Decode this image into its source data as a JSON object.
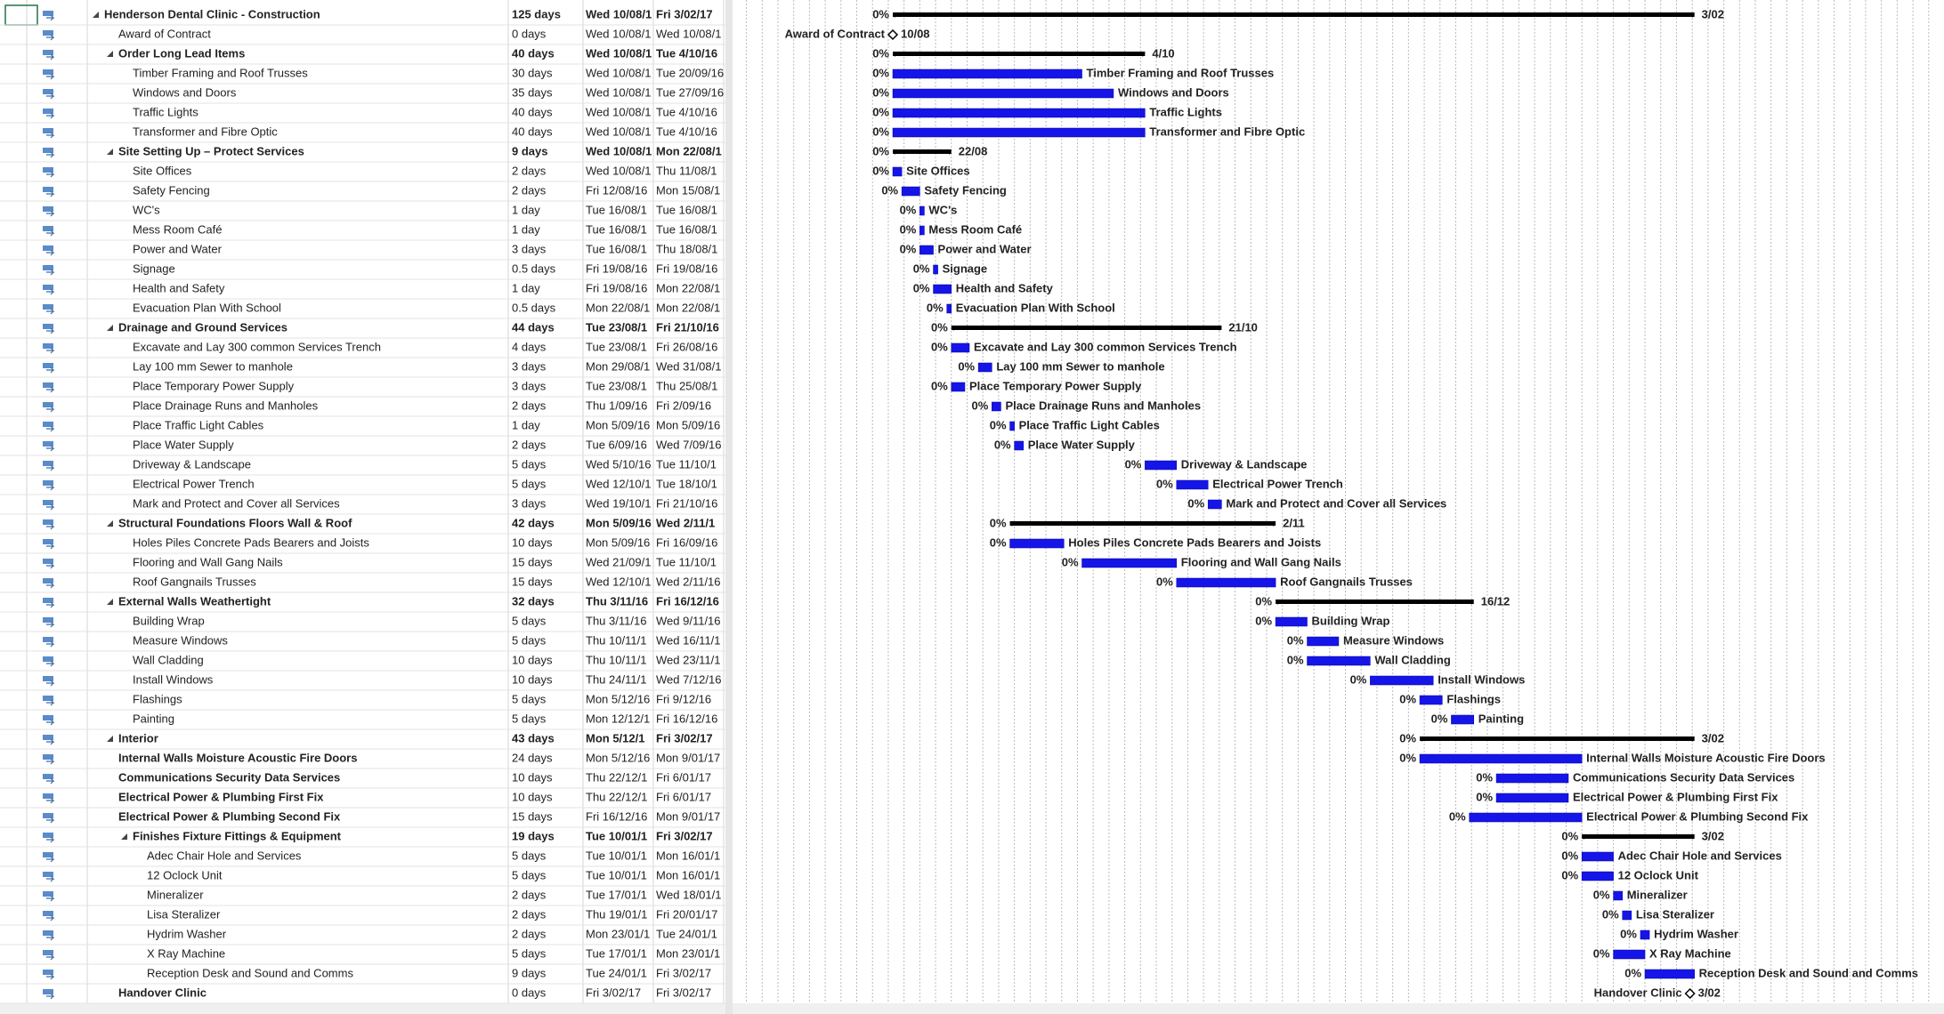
{
  "rows": [
    {
      "name": "Henderson Dental Clinic - Construction",
      "duration": "125 days",
      "start": "Wed 10/08/1",
      "finish": "Fri 3/02/17",
      "complete": "0%",
      "level": 0,
      "summary": true,
      "bold": true,
      "gantt_label": "3/02"
    },
    {
      "name": "Award of Contract",
      "duration": "0 days",
      "start": "Wed 10/08/1",
      "finish": "Wed 10/08/1",
      "level": 1,
      "milestone": true,
      "gantt_label": "10/08"
    },
    {
      "name": "Order Long Lead Items",
      "duration": "40 days",
      "start": "Wed 10/08/1",
      "finish": "Tue 4/10/16",
      "complete": "0%",
      "level": 1,
      "summary": true,
      "bold": true,
      "gantt_label": "4/10"
    },
    {
      "name": "Timber Framing and Roof Trusses",
      "duration": "30 days",
      "start": "Wed 10/08/1",
      "finish": "Tue 20/09/16",
      "complete": "0%",
      "level": 2
    },
    {
      "name": "Windows and Doors",
      "duration": "35 days",
      "start": "Wed 10/08/1",
      "finish": "Tue 27/09/16",
      "complete": "0%",
      "level": 2
    },
    {
      "name": "Traffic Lights",
      "duration": "40 days",
      "start": "Wed 10/08/1",
      "finish": "Tue 4/10/16",
      "complete": "0%",
      "level": 2
    },
    {
      "name": "Transformer and Fibre Optic",
      "duration": "40 days",
      "start": "Wed 10/08/1",
      "finish": "Tue 4/10/16",
      "complete": "0%",
      "level": 2
    },
    {
      "name": "Site Setting Up – Protect Services",
      "duration": "9 days",
      "start": "Wed 10/08/1",
      "finish": "Mon 22/08/1",
      "complete": "0%",
      "level": 1,
      "summary": true,
      "bold": true,
      "gantt_label": "22/08"
    },
    {
      "name": "Site Offices",
      "duration": "2 days",
      "start": "Wed 10/08/1",
      "finish": "Thu 11/08/1",
      "complete": "0%",
      "level": 2
    },
    {
      "name": "Safety Fencing",
      "duration": "2 days",
      "start": "Fri 12/08/16",
      "finish": "Mon 15/08/1",
      "complete": "0%",
      "level": 2
    },
    {
      "name": "WC's",
      "duration": "1 day",
      "start": "Tue 16/08/1",
      "finish": "Tue 16/08/1",
      "complete": "0%",
      "level": 2
    },
    {
      "name": "Mess Room Café",
      "duration": "1 day",
      "start": "Tue 16/08/1",
      "finish": "Tue 16/08/1",
      "complete": "0%",
      "level": 2
    },
    {
      "name": "Power and Water",
      "duration": "3 days",
      "start": "Tue 16/08/1",
      "finish": "Thu 18/08/1",
      "complete": "0%",
      "level": 2
    },
    {
      "name": "Signage",
      "duration": "0.5 days",
      "start": "Fri 19/08/16",
      "finish": "Fri 19/08/16",
      "complete": "0%",
      "level": 2
    },
    {
      "name": "Health and Safety",
      "duration": "1 day",
      "start": "Fri 19/08/16",
      "finish": "Mon 22/08/1",
      "complete": "0%",
      "level": 2
    },
    {
      "name": "Evacuation Plan With School",
      "duration": "0.5 days",
      "start": "Mon 22/08/1",
      "finish": "Mon 22/08/1",
      "complete": "0%",
      "level": 2
    },
    {
      "name": "Drainage and Ground Services",
      "duration": "44 days",
      "start": "Tue 23/08/1",
      "finish": "Fri 21/10/16",
      "complete": "0%",
      "level": 1,
      "summary": true,
      "bold": true,
      "gantt_label": "21/10"
    },
    {
      "name": "Excavate and Lay 300 common Services Trench",
      "duration": "4 days",
      "start": "Tue 23/08/1",
      "finish": "Fri 26/08/16",
      "complete": "0%",
      "level": 2
    },
    {
      "name": "Lay 100 mm Sewer to manhole",
      "duration": "3 days",
      "start": "Mon 29/08/1",
      "finish": "Wed 31/08/1",
      "complete": "0%",
      "level": 2
    },
    {
      "name": "Place Temporary Power Supply",
      "duration": "3 days",
      "start": "Tue 23/08/1",
      "finish": "Thu 25/08/1",
      "complete": "0%",
      "level": 2
    },
    {
      "name": "Place Drainage Runs and Manholes",
      "duration": "2 days",
      "start": "Thu 1/09/16",
      "finish": "Fri 2/09/16",
      "complete": "0%",
      "level": 2
    },
    {
      "name": "Place Traffic Light Cables",
      "duration": "1 day",
      "start": "Mon 5/09/16",
      "finish": "Mon 5/09/16",
      "complete": "0%",
      "level": 2
    },
    {
      "name": "Place Water Supply",
      "duration": "2 days",
      "start": "Tue 6/09/16",
      "finish": "Wed 7/09/16",
      "complete": "0%",
      "level": 2
    },
    {
      "name": "Driveway & Landscape",
      "duration": "5 days",
      "start": "Wed 5/10/16",
      "finish": "Tue 11/10/1",
      "complete": "0%",
      "level": 2
    },
    {
      "name": "Electrical Power Trench",
      "duration": "5 days",
      "start": "Wed 12/10/1",
      "finish": "Tue 18/10/1",
      "complete": "0%",
      "level": 2
    },
    {
      "name": "Mark and Protect and Cover all Services",
      "duration": "3 days",
      "start": "Wed 19/10/1",
      "finish": "Fri 21/10/16",
      "complete": "0%",
      "level": 2
    },
    {
      "name": "Structural Foundations Floors Wall & Roof",
      "duration": "42 days",
      "start": "Mon 5/09/16",
      "finish": "Wed 2/11/1",
      "complete": "0%",
      "level": 1,
      "summary": true,
      "bold": true,
      "gantt_label": "2/11"
    },
    {
      "name": "Holes Piles Concrete Pads Bearers and Joists",
      "duration": "10 days",
      "start": "Mon 5/09/16",
      "finish": "Fri 16/09/16",
      "complete": "0%",
      "level": 2
    },
    {
      "name": "Flooring and Wall Gang Nails",
      "duration": "15 days",
      "start": "Wed 21/09/1",
      "finish": "Tue 11/10/1",
      "complete": "0%",
      "level": 2
    },
    {
      "name": "Roof Gangnails Trusses",
      "duration": "15 days",
      "start": "Wed 12/10/1",
      "finish": "Wed 2/11/16",
      "complete": "0%",
      "level": 2
    },
    {
      "name": "External Walls Weathertight",
      "duration": "32 days",
      "start": "Thu 3/11/16",
      "finish": "Fri 16/12/16",
      "complete": "0%",
      "level": 1,
      "summary": true,
      "bold": true,
      "gantt_label": "16/12"
    },
    {
      "name": "Building Wrap",
      "duration": "5 days",
      "start": "Thu 3/11/16",
      "finish": "Wed 9/11/16",
      "complete": "0%",
      "level": 2
    },
    {
      "name": "Measure Windows",
      "duration": "5 days",
      "start": "Thu 10/11/1",
      "finish": "Wed 16/11/1",
      "complete": "0%",
      "level": 2
    },
    {
      "name": "Wall Cladding",
      "duration": "10 days",
      "start": "Thu 10/11/1",
      "finish": "Wed 23/11/1",
      "complete": "0%",
      "level": 2
    },
    {
      "name": "Install Windows",
      "duration": "10 days",
      "start": "Thu 24/11/1",
      "finish": "Wed 7/12/16",
      "complete": "0%",
      "level": 2
    },
    {
      "name": "Flashings",
      "duration": "5 days",
      "start": "Mon 5/12/16",
      "finish": "Fri 9/12/16",
      "complete": "0%",
      "level": 2
    },
    {
      "name": "Painting",
      "duration": "5 days",
      "start": "Mon 12/12/1",
      "finish": "Fri 16/12/16",
      "complete": "0%",
      "level": 2
    },
    {
      "name": "Interior",
      "duration": "43 days",
      "start": "Mon 5/12/1",
      "finish": "Fri 3/02/17",
      "complete": "0%",
      "level": 1,
      "summary": true,
      "bold": true,
      "gantt_label": "3/02"
    },
    {
      "name": "Internal Walls Moisture Acoustic Fire Doors",
      "duration": "24 days",
      "start": "Mon 5/12/16",
      "finish": "Mon 9/01/17",
      "complete": "0%",
      "level": 1,
      "bold": true
    },
    {
      "name": "Communications Security Data Services",
      "duration": "10 days",
      "start": "Thu 22/12/1",
      "finish": "Fri 6/01/17",
      "complete": "0%",
      "level": 1,
      "bold": true
    },
    {
      "name": "Electrical Power & Plumbing First Fix",
      "duration": "10 days",
      "start": "Thu 22/12/1",
      "finish": "Fri 6/01/17",
      "complete": "0%",
      "level": 1,
      "bold": true
    },
    {
      "name": "Electrical Power & Plumbing Second Fix",
      "duration": "15 days",
      "start": "Fri 16/12/16",
      "finish": "Mon 9/01/17",
      "complete": "0%",
      "level": 1,
      "bold": true
    },
    {
      "name": "Finishes Fixture Fittings & Equipment",
      "duration": "19 days",
      "start": "Tue 10/01/1",
      "finish": "Fri 3/02/17",
      "complete": "0%",
      "level": 2,
      "summary": true,
      "bold": true,
      "gantt_label": "3/02"
    },
    {
      "name": "Adec  Chair Hole and Services",
      "duration": "5 days",
      "start": "Tue 10/01/1",
      "finish": "Mon 16/01/1",
      "complete": "0%",
      "level": 3
    },
    {
      "name": "12 Oclock Unit",
      "duration": "5 days",
      "start": "Tue 10/01/1",
      "finish": "Mon 16/01/1",
      "complete": "0%",
      "level": 3
    },
    {
      "name": "Mineralizer",
      "duration": "2 days",
      "start": "Tue 17/01/1",
      "finish": "Wed 18/01/1",
      "complete": "0%",
      "level": 3
    },
    {
      "name": "Lisa Steralizer",
      "duration": "2 days",
      "start": "Thu 19/01/1",
      "finish": "Fri 20/01/17",
      "complete": "0%",
      "level": 3
    },
    {
      "name": "Hydrim Washer",
      "duration": "2 days",
      "start": "Mon 23/01/1",
      "finish": "Tue 24/01/1",
      "complete": "0%",
      "level": 3
    },
    {
      "name": "X Ray Machine",
      "duration": "5 days",
      "start": "Tue 17/01/1",
      "finish": "Mon 23/01/1",
      "complete": "0%",
      "level": 3
    },
    {
      "name": "Reception Desk and Sound and Comms",
      "duration": "9 days",
      "start": "Tue 24/01/1",
      "finish": "Fri 3/02/17",
      "complete": "0%",
      "level": 3
    },
    {
      "name": "Handover Clinic",
      "duration": "0 days",
      "start": "Fri 3/02/17",
      "finish": "Fri 3/02/17",
      "level": 1,
      "milestone": true,
      "bold": true,
      "gantt_label": "3/02"
    }
  ]
}
